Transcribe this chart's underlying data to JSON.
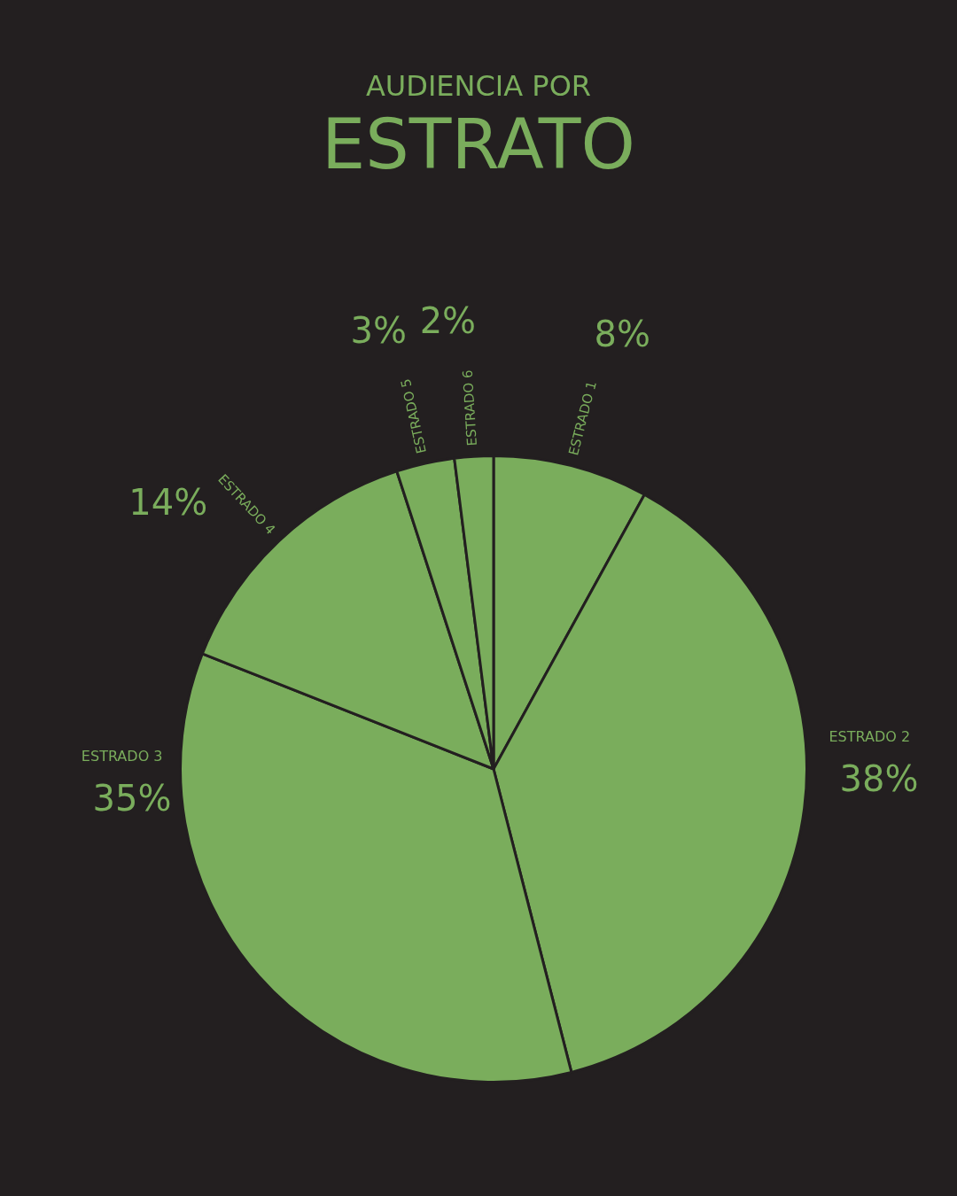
{
  "chart_data": {
    "type": "pie",
    "title": "AUDIENCIA POR",
    "subtitle": "ESTRATO",
    "categories": [
      "ESTRADO 1",
      "ESTRADO 2",
      "ESTRADO 3",
      "ESTRADO 4",
      "ESTRADO 5",
      "ESTRADO 6"
    ],
    "values": [
      8,
      38,
      35,
      14,
      3,
      2
    ],
    "value_labels": [
      "8%",
      "38%",
      "35%",
      "14%",
      "3%",
      "2%"
    ],
    "colors": [
      "#7aad5c",
      "#7aad5c",
      "#7aad5c",
      "#7aad5c",
      "#7aad5c",
      "#7aad5c"
    ],
    "legend": false
  }
}
